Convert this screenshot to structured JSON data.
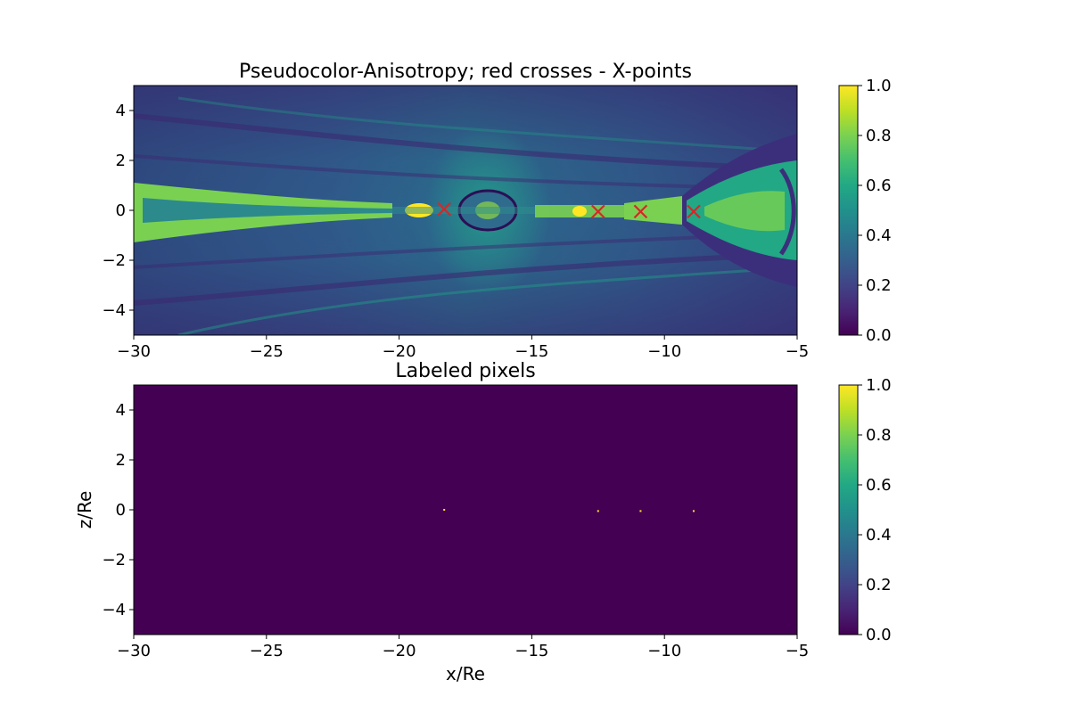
{
  "chart_data": [
    {
      "type": "heatmap",
      "title": "Pseudocolor-Anisotropy; red crosses - X-points",
      "xlabel": "",
      "ylabel": "",
      "xlim": [
        -30,
        -5
      ],
      "ylim": [
        -5,
        5
      ],
      "x_ticks": [
        "−30",
        "−25",
        "−20",
        "−15",
        "−10",
        "−5"
      ],
      "x_tick_values": [
        -30,
        -25,
        -20,
        -15,
        -10,
        -5
      ],
      "y_ticks": [
        "4",
        "2",
        "0",
        "−2",
        "−4"
      ],
      "y_tick_values": [
        4,
        2,
        0,
        -2,
        -4
      ],
      "colormap": "viridis",
      "colorbar": {
        "range": [
          0,
          1
        ],
        "ticks": [
          "1.0",
          "0.8",
          "0.6",
          "0.4",
          "0.2",
          "0.0"
        ],
        "tick_values": [
          1.0,
          0.8,
          0.6,
          0.4,
          0.2,
          0.0
        ]
      },
      "markers": {
        "marker": "x",
        "color": "#d62728",
        "points": [
          {
            "x": -18.3,
            "z": 0.05
          },
          {
            "x": -12.5,
            "z": -0.05
          },
          {
            "x": -10.9,
            "z": -0.05
          },
          {
            "x": -8.9,
            "z": -0.05
          }
        ]
      }
    },
    {
      "type": "heatmap",
      "title": "Labeled pixels",
      "xlabel": "x/Re",
      "ylabel": "z/Re",
      "xlim": [
        -30,
        -5
      ],
      "ylim": [
        -5,
        5
      ],
      "x_ticks": [
        "−30",
        "−25",
        "−20",
        "−15",
        "−10",
        "−5"
      ],
      "x_tick_values": [
        -30,
        -25,
        -20,
        -15,
        -10,
        -5
      ],
      "y_ticks": [
        "4",
        "2",
        "0",
        "−2",
        "−4"
      ],
      "y_tick_values": [
        4,
        2,
        0,
        -2,
        -4
      ],
      "colormap": "viridis",
      "background_value": 0,
      "colorbar": {
        "range": [
          0,
          1
        ],
        "ticks": [
          "1.0",
          "0.8",
          "0.6",
          "0.4",
          "0.2",
          "0.0"
        ],
        "tick_values": [
          1.0,
          0.8,
          0.6,
          0.4,
          0.2,
          0.0
        ]
      },
      "labeled_pixels": [
        {
          "x": -18.3,
          "z": 0.0,
          "value": 1
        },
        {
          "x": -12.5,
          "z": -0.05,
          "value": 1
        },
        {
          "x": -10.9,
          "z": -0.05,
          "value": 1
        },
        {
          "x": -8.9,
          "z": -0.05,
          "value": 1
        }
      ]
    }
  ]
}
